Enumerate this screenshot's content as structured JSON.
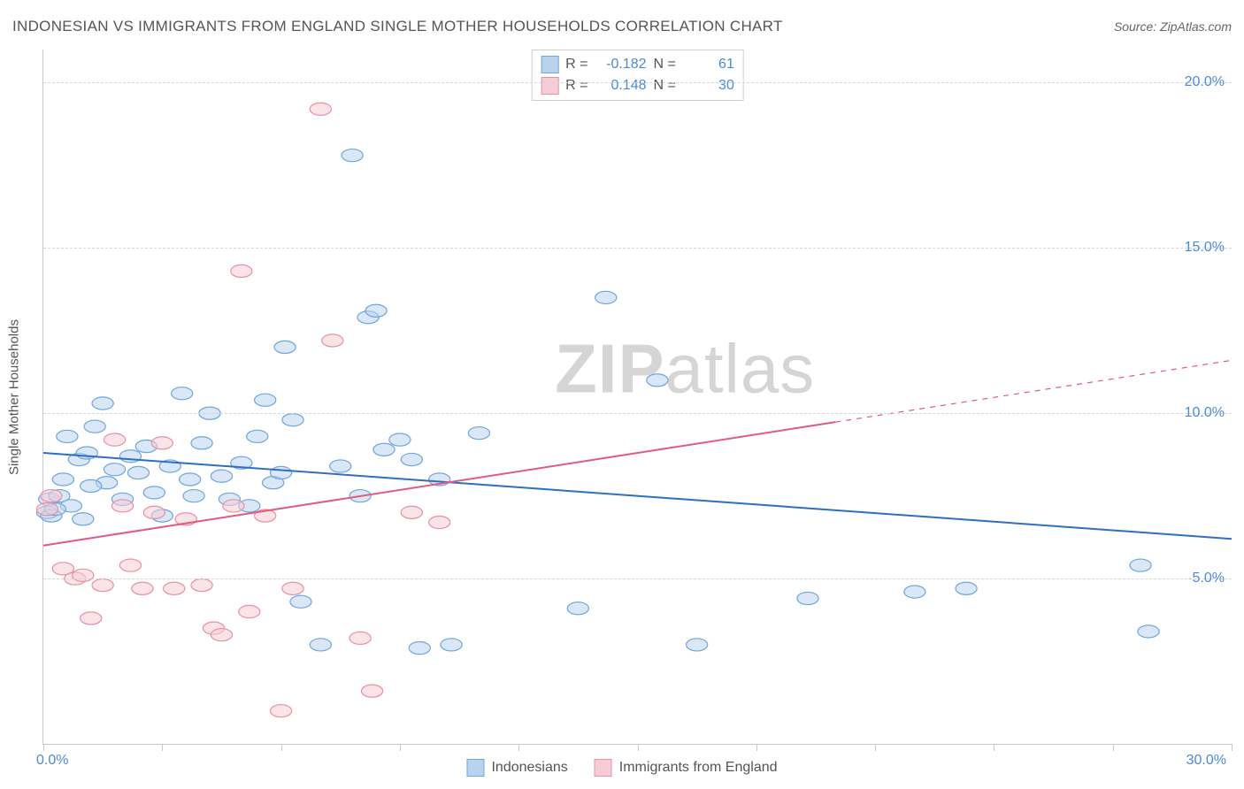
{
  "title": "INDONESIAN VS IMMIGRANTS FROM ENGLAND SINGLE MOTHER HOUSEHOLDS CORRELATION CHART",
  "source_prefix": "Source: ",
  "source_name": "ZipAtlas.com",
  "y_axis_label": "Single Mother Households",
  "watermark_bold": "ZIP",
  "watermark_rest": "atlas",
  "chart": {
    "type": "scatter",
    "xlim": [
      0,
      30
    ],
    "ylim": [
      0,
      21
    ],
    "x_ticks": [
      0,
      3,
      6,
      9,
      12,
      15,
      18,
      21,
      24,
      27,
      30
    ],
    "x_origin_label": "0.0%",
    "x_max_label": "30.0%",
    "y_gridlines": [
      {
        "value": 5,
        "label": "5.0%"
      },
      {
        "value": 10,
        "label": "10.0%"
      },
      {
        "value": 15,
        "label": "15.0%"
      },
      {
        "value": 20,
        "label": "20.0%"
      }
    ],
    "background_color": "#ffffff",
    "grid_color": "#d7d7d7",
    "axis_color": "#c8c8c8",
    "tick_label_color": "#4a8ad8",
    "marker_radius": 9,
    "marker_opacity": 0.55,
    "line_width": 2,
    "series": [
      {
        "name": "Indonesians",
        "color_fill": "#b9d3ee",
        "color_stroke": "#6fa6dd",
        "line_color": "#2f6fc0",
        "R": "-0.182",
        "N": "61",
        "trend": {
          "x1": 0,
          "y1": 8.8,
          "x2": 30,
          "y2": 6.2,
          "dashed_from_x": null
        },
        "points": [
          [
            0.1,
            7.0
          ],
          [
            0.15,
            7.4
          ],
          [
            0.2,
            6.9
          ],
          [
            0.4,
            7.5
          ],
          [
            0.5,
            8.0
          ],
          [
            0.6,
            9.3
          ],
          [
            0.7,
            7.2
          ],
          [
            0.9,
            8.6
          ],
          [
            1.0,
            6.8
          ],
          [
            1.1,
            8.8
          ],
          [
            1.3,
            9.6
          ],
          [
            1.5,
            10.3
          ],
          [
            1.6,
            7.9
          ],
          [
            1.8,
            8.3
          ],
          [
            2.0,
            7.4
          ],
          [
            2.2,
            8.7
          ],
          [
            2.4,
            8.2
          ],
          [
            2.6,
            9.0
          ],
          [
            2.8,
            7.6
          ],
          [
            3.0,
            6.9
          ],
          [
            3.2,
            8.4
          ],
          [
            3.5,
            10.6
          ],
          [
            3.7,
            8.0
          ],
          [
            3.8,
            7.5
          ],
          [
            4.0,
            9.1
          ],
          [
            4.2,
            10.0
          ],
          [
            4.5,
            8.1
          ],
          [
            4.7,
            7.4
          ],
          [
            5.0,
            8.5
          ],
          [
            5.2,
            7.2
          ],
          [
            5.4,
            9.3
          ],
          [
            5.6,
            10.4
          ],
          [
            5.8,
            7.9
          ],
          [
            6.0,
            8.2
          ],
          [
            6.1,
            12.0
          ],
          [
            6.3,
            9.8
          ],
          [
            6.5,
            4.3
          ],
          [
            7.0,
            3.0
          ],
          [
            7.5,
            8.4
          ],
          [
            7.8,
            17.8
          ],
          [
            8.0,
            7.5
          ],
          [
            8.2,
            12.9
          ],
          [
            8.4,
            13.1
          ],
          [
            8.6,
            8.9
          ],
          [
            9.0,
            9.2
          ],
          [
            9.3,
            8.6
          ],
          [
            9.5,
            2.9
          ],
          [
            10.0,
            8.0
          ],
          [
            10.3,
            3.0
          ],
          [
            11.0,
            9.4
          ],
          [
            13.5,
            4.1
          ],
          [
            14.2,
            13.5
          ],
          [
            15.5,
            11.0
          ],
          [
            16.5,
            3.0
          ],
          [
            19.3,
            4.4
          ],
          [
            22.0,
            4.6
          ],
          [
            23.3,
            4.7
          ],
          [
            27.7,
            5.4
          ],
          [
            27.9,
            3.4
          ],
          [
            0.3,
            7.1
          ],
          [
            1.2,
            7.8
          ]
        ]
      },
      {
        "name": "Immigrants from England",
        "color_fill": "#f6cdd6",
        "color_stroke": "#e890a5",
        "line_color": "#e05b7e",
        "R": "0.148",
        "N": "30",
        "trend": {
          "x1": 0,
          "y1": 6.0,
          "x2": 30,
          "y2": 11.6,
          "dashed_from_x": 20
        },
        "points": [
          [
            0.1,
            7.1
          ],
          [
            0.2,
            7.5
          ],
          [
            0.5,
            5.3
          ],
          [
            0.8,
            5.0
          ],
          [
            1.0,
            5.1
          ],
          [
            1.2,
            3.8
          ],
          [
            1.5,
            4.8
          ],
          [
            1.8,
            9.2
          ],
          [
            2.0,
            7.2
          ],
          [
            2.2,
            5.4
          ],
          [
            2.5,
            4.7
          ],
          [
            2.8,
            7.0
          ],
          [
            3.0,
            9.1
          ],
          [
            3.3,
            4.7
          ],
          [
            3.6,
            6.8
          ],
          [
            4.0,
            4.8
          ],
          [
            4.3,
            3.5
          ],
          [
            4.5,
            3.3
          ],
          [
            4.8,
            7.2
          ],
          [
            5.0,
            14.3
          ],
          [
            5.2,
            4.0
          ],
          [
            5.6,
            6.9
          ],
          [
            6.0,
            1.0
          ],
          [
            6.3,
            4.7
          ],
          [
            7.0,
            19.2
          ],
          [
            7.3,
            12.2
          ],
          [
            8.0,
            3.2
          ],
          [
            8.3,
            1.6
          ],
          [
            9.3,
            7.0
          ],
          [
            10.0,
            6.7
          ]
        ]
      }
    ]
  },
  "legend_stats": {
    "r_label": "R =",
    "n_label": "N ="
  },
  "legend_bottom": [
    {
      "swatch_fill": "#b9d3ee",
      "swatch_stroke": "#6fa6dd",
      "label": "Indonesians"
    },
    {
      "swatch_fill": "#f6cdd6",
      "swatch_stroke": "#e890a5",
      "label": "Immigrants from England"
    }
  ]
}
